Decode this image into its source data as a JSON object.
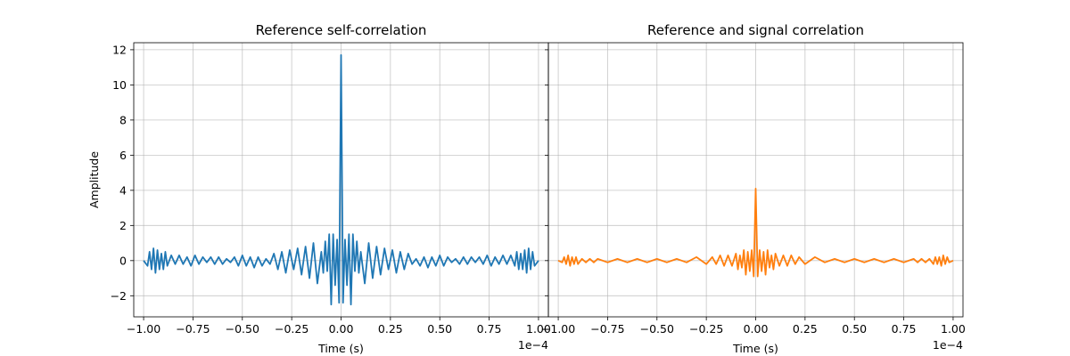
{
  "chart_data": [
    {
      "type": "line",
      "title": "Reference self-correlation",
      "xlabel": "Time (s)",
      "ylabel": "Amplitude",
      "x_multiplier_label": "1e−4",
      "xlim": [
        -1.05,
        1.05
      ],
      "ylim": [
        -3.2,
        12.4
      ],
      "xticks": [
        -1.0,
        -0.75,
        -0.5,
        -0.25,
        0.0,
        0.25,
        0.5,
        0.75,
        1.0
      ],
      "xtick_labels": [
        "−1.00",
        "−0.75",
        "−0.50",
        "−0.25",
        "0.00",
        "0.25",
        "0.50",
        "0.75",
        "1.00"
      ],
      "yticks": [
        -2,
        0,
        2,
        4,
        6,
        8,
        10,
        12
      ],
      "ytick_labels": [
        "−2",
        "0",
        "2",
        "4",
        "6",
        "8",
        "10",
        "12"
      ],
      "grid": true,
      "series": [
        {
          "color": "#1f77b4",
          "x": [
            -1.0,
            -0.98,
            -0.97,
            -0.96,
            -0.95,
            -0.94,
            -0.93,
            -0.92,
            -0.91,
            -0.9,
            -0.89,
            -0.88,
            -0.86,
            -0.84,
            -0.82,
            -0.8,
            -0.78,
            -0.76,
            -0.74,
            -0.72,
            -0.7,
            -0.68,
            -0.66,
            -0.64,
            -0.62,
            -0.6,
            -0.58,
            -0.56,
            -0.54,
            -0.52,
            -0.5,
            -0.48,
            -0.46,
            -0.44,
            -0.42,
            -0.4,
            -0.38,
            -0.36,
            -0.34,
            -0.32,
            -0.3,
            -0.28,
            -0.26,
            -0.24,
            -0.22,
            -0.2,
            -0.18,
            -0.16,
            -0.14,
            -0.12,
            -0.1,
            -0.09,
            -0.08,
            -0.07,
            -0.06,
            -0.05,
            -0.04,
            -0.03,
            -0.02,
            -0.01,
            0.0,
            0.01,
            0.02,
            0.03,
            0.04,
            0.05,
            0.06,
            0.07,
            0.08,
            0.09,
            0.1,
            0.12,
            0.14,
            0.16,
            0.18,
            0.2,
            0.22,
            0.24,
            0.26,
            0.28,
            0.3,
            0.32,
            0.34,
            0.36,
            0.38,
            0.4,
            0.42,
            0.44,
            0.46,
            0.48,
            0.5,
            0.52,
            0.54,
            0.56,
            0.58,
            0.6,
            0.62,
            0.64,
            0.66,
            0.68,
            0.7,
            0.72,
            0.74,
            0.76,
            0.78,
            0.8,
            0.82,
            0.84,
            0.86,
            0.88,
            0.89,
            0.9,
            0.91,
            0.92,
            0.93,
            0.94,
            0.95,
            0.96,
            0.97,
            0.98,
            1.0
          ],
          "y": [
            0.0,
            -0.3,
            0.5,
            -0.5,
            0.7,
            -0.7,
            0.6,
            -0.5,
            0.4,
            -0.5,
            0.5,
            -0.3,
            0.3,
            -0.2,
            0.3,
            -0.2,
            0.2,
            -0.3,
            0.3,
            -0.2,
            0.2,
            -0.1,
            0.2,
            -0.2,
            0.2,
            -0.2,
            0.1,
            -0.1,
            0.2,
            -0.3,
            0.3,
            -0.3,
            0.2,
            -0.4,
            0.2,
            -0.3,
            0.1,
            -0.2,
            0.4,
            -0.5,
            0.5,
            -0.7,
            0.6,
            -0.5,
            0.7,
            -0.8,
            0.8,
            -1.0,
            1.0,
            -1.3,
            0.5,
            -0.7,
            1.1,
            -0.6,
            1.5,
            -2.5,
            1.5,
            -1.4,
            1.2,
            -2.4,
            11.7,
            -2.4,
            1.2,
            -1.4,
            1.5,
            -2.5,
            1.5,
            -0.6,
            1.1,
            -0.7,
            0.5,
            -1.3,
            1.0,
            -1.0,
            0.8,
            -0.8,
            0.7,
            -0.5,
            0.6,
            -0.7,
            0.5,
            -0.5,
            0.4,
            -0.2,
            0.1,
            -0.3,
            0.2,
            -0.4,
            0.2,
            -0.3,
            0.3,
            -0.3,
            0.2,
            -0.1,
            0.1,
            -0.2,
            0.2,
            -0.2,
            0.2,
            -0.1,
            0.2,
            -0.2,
            0.3,
            -0.3,
            0.2,
            -0.2,
            0.3,
            -0.2,
            0.3,
            -0.3,
            0.5,
            -0.5,
            0.4,
            -0.5,
            0.6,
            -0.7,
            0.7,
            -0.5,
            0.5,
            -0.3,
            0.0
          ]
        }
      ]
    },
    {
      "type": "line",
      "title": "Reference and signal correlation",
      "xlabel": "Time (s)",
      "ylabel": "",
      "x_multiplier_label": "1e−4",
      "xlim": [
        -1.05,
        1.05
      ],
      "ylim": [
        -3.2,
        12.4
      ],
      "xticks": [
        -1.0,
        -0.75,
        -0.5,
        -0.25,
        0.0,
        0.25,
        0.5,
        0.75,
        1.0
      ],
      "xtick_labels": [
        "−1.00",
        "−0.75",
        "−0.50",
        "−0.25",
        "0.00",
        "0.25",
        "0.50",
        "0.75",
        "1.00"
      ],
      "yticks": [
        -2,
        0,
        2,
        4,
        6,
        8,
        10,
        12
      ],
      "ytick_labels": [],
      "grid": true,
      "series": [
        {
          "color": "#ff7f0e",
          "x": [
            -1.0,
            -0.98,
            -0.97,
            -0.96,
            -0.95,
            -0.94,
            -0.93,
            -0.92,
            -0.91,
            -0.9,
            -0.88,
            -0.86,
            -0.84,
            -0.82,
            -0.8,
            -0.75,
            -0.7,
            -0.65,
            -0.6,
            -0.55,
            -0.5,
            -0.45,
            -0.4,
            -0.35,
            -0.3,
            -0.25,
            -0.22,
            -0.2,
            -0.18,
            -0.16,
            -0.14,
            -0.12,
            -0.1,
            -0.09,
            -0.08,
            -0.07,
            -0.06,
            -0.05,
            -0.04,
            -0.03,
            -0.02,
            -0.01,
            0.0,
            0.01,
            0.02,
            0.03,
            0.04,
            0.05,
            0.06,
            0.07,
            0.08,
            0.09,
            0.1,
            0.12,
            0.14,
            0.16,
            0.18,
            0.2,
            0.22,
            0.25,
            0.3,
            0.35,
            0.4,
            0.45,
            0.5,
            0.55,
            0.6,
            0.65,
            0.7,
            0.75,
            0.8,
            0.82,
            0.84,
            0.86,
            0.88,
            0.9,
            0.91,
            0.92,
            0.93,
            0.94,
            0.95,
            0.96,
            0.97,
            0.98,
            1.0
          ],
          "y": [
            0.0,
            -0.1,
            0.2,
            -0.2,
            0.3,
            -0.3,
            0.2,
            -0.2,
            0.2,
            -0.2,
            0.1,
            -0.1,
            0.1,
            -0.1,
            0.1,
            -0.1,
            0.1,
            -0.1,
            0.1,
            -0.1,
            0.1,
            -0.1,
            0.1,
            -0.1,
            0.2,
            -0.2,
            0.2,
            -0.2,
            0.3,
            -0.3,
            0.3,
            -0.3,
            0.4,
            -0.5,
            0.3,
            -0.4,
            0.6,
            -0.8,
            0.5,
            -0.6,
            0.6,
            -0.9,
            4.1,
            -0.9,
            0.6,
            -0.6,
            0.5,
            -0.8,
            0.6,
            -0.4,
            0.3,
            -0.5,
            0.4,
            -0.3,
            0.3,
            -0.3,
            0.3,
            -0.2,
            0.2,
            -0.2,
            0.2,
            -0.1,
            0.1,
            -0.1,
            0.1,
            -0.1,
            0.1,
            -0.1,
            0.1,
            -0.1,
            0.1,
            -0.1,
            0.1,
            -0.1,
            0.1,
            -0.2,
            0.2,
            -0.2,
            0.2,
            -0.3,
            0.3,
            -0.2,
            0.2,
            -0.1,
            0.0
          ]
        }
      ]
    }
  ]
}
